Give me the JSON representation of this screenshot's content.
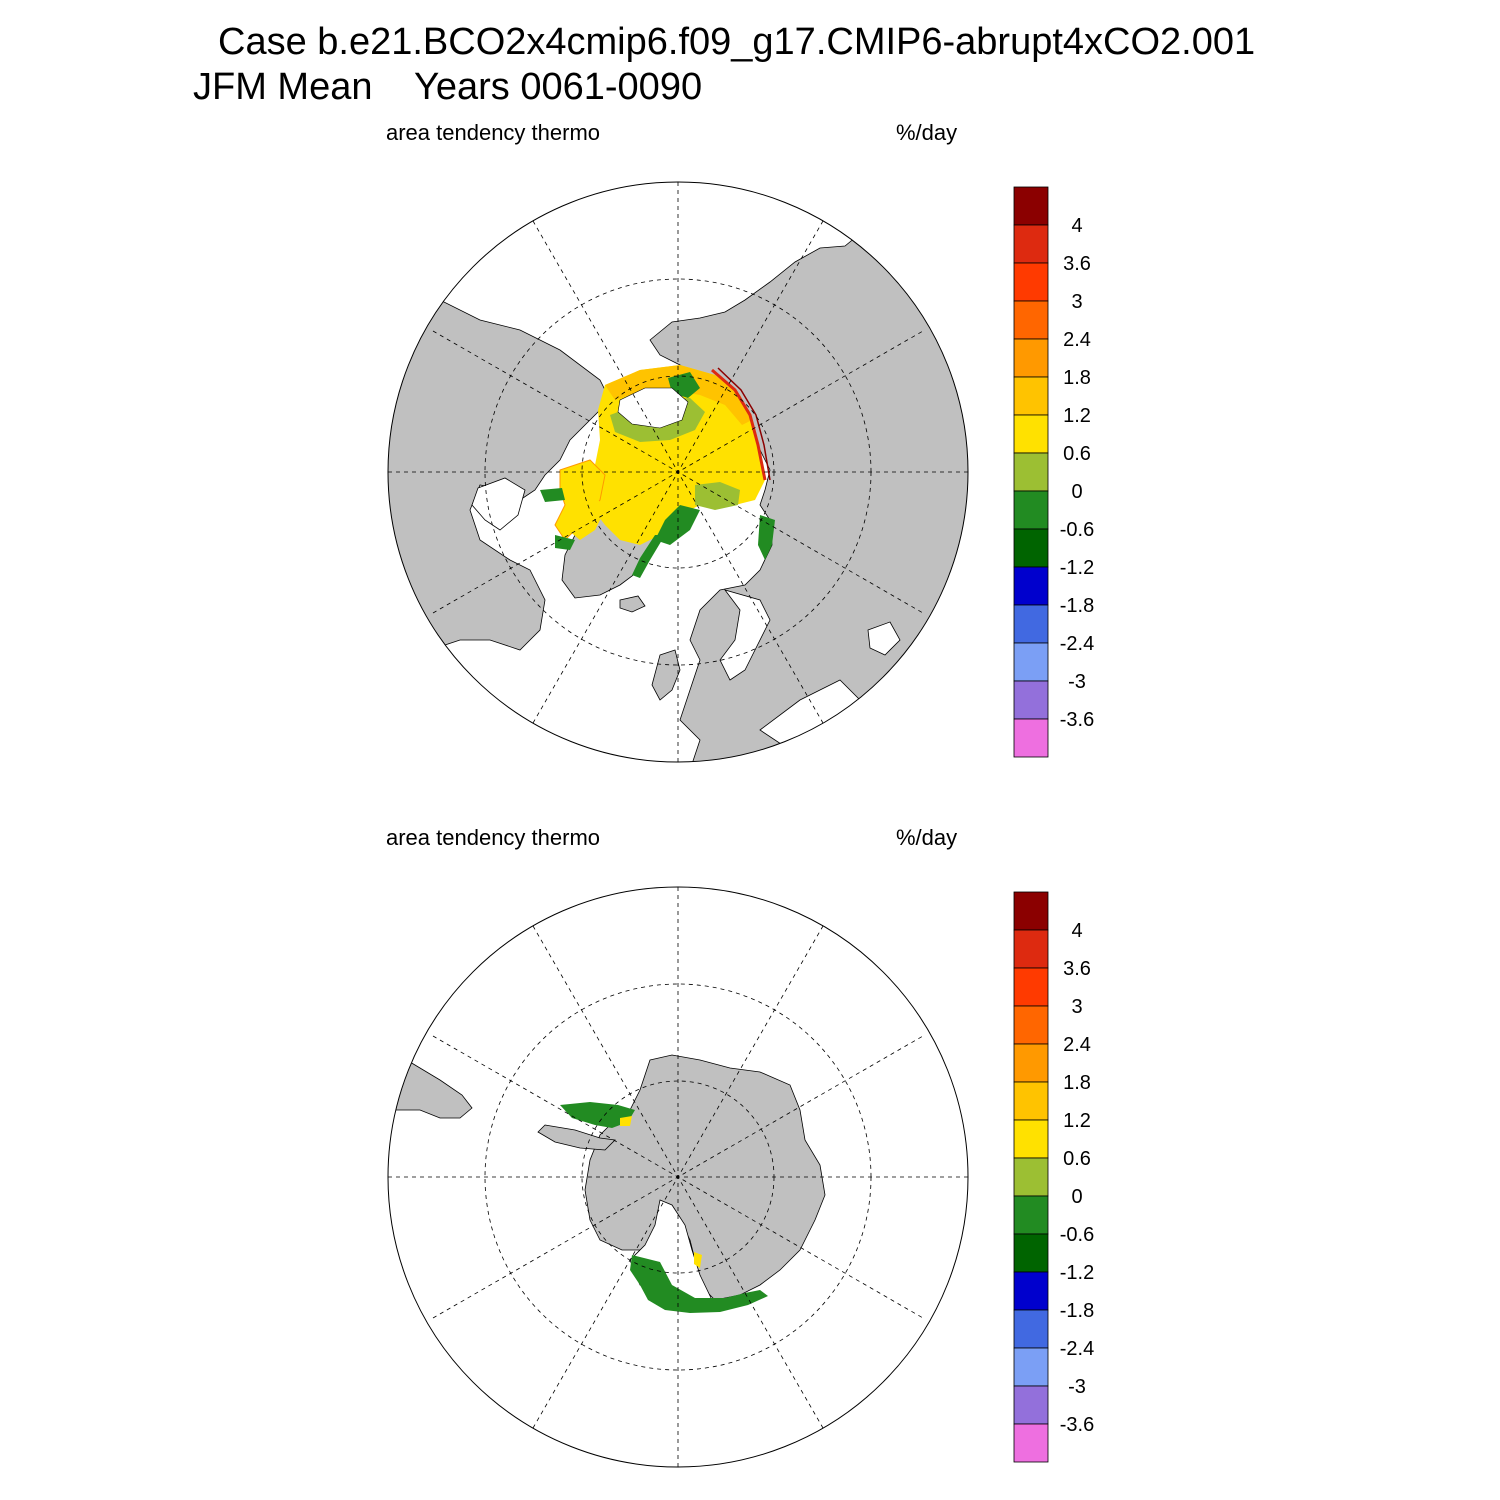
{
  "title": {
    "line1": "Case b.e21.BCO2x4cmip6.f09_g17.CMIP6-abrupt4xCO2.001",
    "line2": "JFM Mean    Years 0061-0090"
  },
  "panels": [
    {
      "id": "north",
      "hemisphere": "Northern Hemisphere polar stereographic",
      "left_label": "area tendency thermo",
      "right_label": "%/day"
    },
    {
      "id": "south",
      "hemisphere": "Southern Hemisphere polar stereographic",
      "left_label": "area tendency thermo",
      "right_label": "%/day"
    }
  ],
  "colorbar": {
    "tick_labels": [
      "4",
      "3.6",
      "3",
      "2.4",
      "1.8",
      "1.2",
      "0.6",
      "0",
      "-0.6",
      "-1.2",
      "-1.8",
      "-2.4",
      "-3",
      "-3.6"
    ],
    "colors_top_to_bottom": [
      "#8b0000",
      "#dd2a10",
      "#ff3a00",
      "#ff6600",
      "#ff9900",
      "#ffc300",
      "#ffe100",
      "#9cbf33",
      "#228b22",
      "#006400",
      "#0000cd",
      "#4169e1",
      "#7b9ff5",
      "#9370db",
      "#ee6fe0"
    ]
  },
  "colors": {
    "land": "#c0c0c0",
    "ocean": "#ffffff",
    "graticule": "#000000"
  },
  "chart_data": [
    {
      "type": "heatmap",
      "projection": "north polar stereographic",
      "title": "area tendency thermo",
      "units": "%/day",
      "contour_levels": [
        -3.6,
        -3,
        -2.4,
        -1.8,
        -1.2,
        -0.6,
        0,
        0.6,
        1.2,
        1.8,
        2.4,
        3,
        3.6,
        4
      ]
    },
    {
      "type": "heatmap",
      "projection": "south polar stereographic",
      "title": "area tendency thermo",
      "units": "%/day",
      "contour_levels": [
        -3.6,
        -3,
        -2.4,
        -1.8,
        -1.2,
        -0.6,
        0,
        0.6,
        1.2,
        1.8,
        2.4,
        3,
        3.6,
        4
      ]
    }
  ]
}
